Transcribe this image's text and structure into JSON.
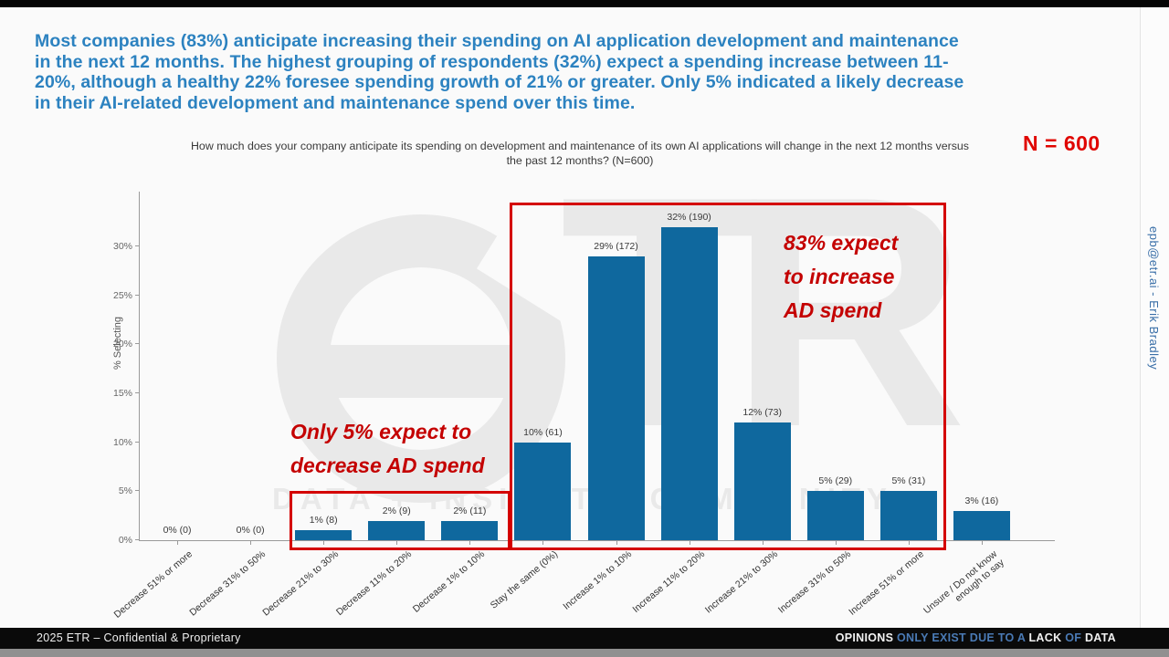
{
  "slide": {
    "headline": {
      "lines": [
        "Most companies (83%) anticipate increasing their spending on AI application development and maintenance",
        "in the next 12 months. The highest grouping of respondents (32%) expect a spending increase between 11-",
        "20%, although a healthy 22% foresee spending growth of 21% or greater. Only 5% indicated a likely decrease",
        "in their AI-related development and maintenance spend over this time."
      ],
      "color": "#2c82c0"
    },
    "n_badge": "N = 600",
    "credit_vertical": "epb@etr.ai - Erik Bradley"
  },
  "chart_data": {
    "type": "bar",
    "title": "How much does your company anticipate its spending on development and maintenance of its own AI applications will change in the next 12 months versus the past 12 months? (N=600)",
    "title_lines": [
      "How much does your company anticipate its spending on development and maintenance of its own AI applications will change in the next 12 months versus",
      "the past 12 months? (N=600)"
    ],
    "xlabel": "",
    "ylabel": "% Selecting",
    "ylim": [
      0,
      35
    ],
    "yticks": [
      0,
      5,
      10,
      15,
      20,
      25,
      30
    ],
    "grid": false,
    "legend": "none",
    "bar_color": "#0f689e",
    "categories": [
      "Decrease 51% or more",
      "Decrease 31% to 50%",
      "Decrease 21% to 30%",
      "Decrease 11% to 20%",
      "Decrease 1% to 10%",
      "Stay the same (0%)",
      "Increase 1% to 10%",
      "Increase 11% to 20%",
      "Increase 21% to 30%",
      "Increase 31% to 50%",
      "Increase 51% or more",
      "Unsure / Do not know enough to say"
    ],
    "values": [
      0,
      0,
      1,
      2,
      2,
      10,
      29,
      32,
      12,
      5,
      5,
      3
    ],
    "counts": [
      0,
      0,
      8,
      9,
      11,
      61,
      172,
      190,
      73,
      29,
      31,
      16
    ],
    "bar_labels": [
      "0% (0)",
      "0% (0)",
      "1% (8)",
      "2% (9)",
      "2% (11)",
      "10% (61)",
      "29% (172)",
      "32% (190)",
      "12% (73)",
      "5% (29)",
      "5% (31)",
      "3% (16)"
    ]
  },
  "annotations": {
    "decrease_note_lines": [
      "Only 5% expect to",
      "decrease AD spend"
    ],
    "increase_note_lines": [
      "83% expect",
      "to increase",
      "AD spend"
    ],
    "note_color": "#c40000",
    "box_color": "#d40000"
  },
  "watermark": {
    "letters": "TR",
    "tagline": "DATA + INSIGHT + COMMUNITY"
  },
  "footer": {
    "left": "2025 ETR – Confidential & Proprietary",
    "right_segments": [
      {
        "text": "OPINIONS ",
        "color": "#f2f2f2"
      },
      {
        "text": "ONLY EXIST DUE TO A ",
        "color": "#4a7ab5"
      },
      {
        "text": "LACK ",
        "color": "#f2f2f2"
      },
      {
        "text": "OF ",
        "color": "#4a7ab5"
      },
      {
        "text": "DATA",
        "color": "#f2f2f2"
      }
    ]
  }
}
